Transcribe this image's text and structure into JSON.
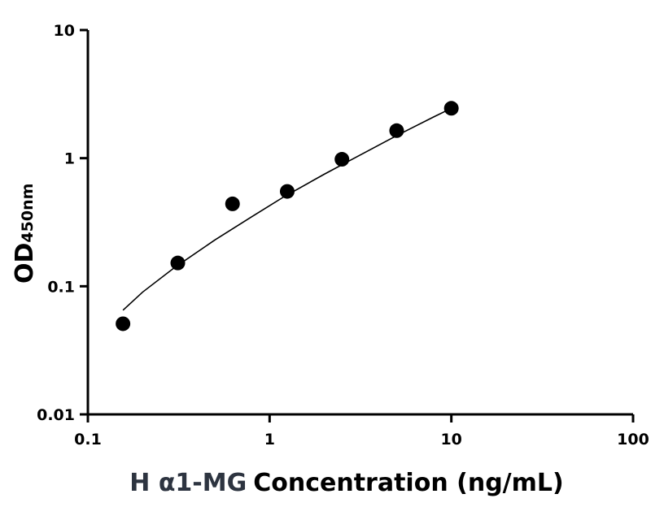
{
  "chart_data": {
    "type": "scatter",
    "xscale": "log",
    "yscale": "log",
    "xlim": [
      0.1,
      100
    ],
    "ylim": [
      0.01,
      10
    ],
    "x_ticks": [
      "0.1",
      "1",
      "10",
      "100"
    ],
    "y_ticks": [
      "0.01",
      "0.1",
      "1",
      "10"
    ],
    "xlabel_prefix": "H α1-MG",
    "xlabel": "Concentration (ng/mL)",
    "ylabel": "OD",
    "ylabel_subscript": "450nm",
    "grid": false,
    "series": [
      {
        "x": [
          0.156,
          0.3125,
          0.625,
          1.25,
          2.5,
          5,
          10
        ],
        "y": [
          0.051,
          0.152,
          0.44,
          0.55,
          0.98,
          1.64,
          2.45
        ]
      }
    ],
    "fit_curve": {
      "x": [
        0.156,
        0.2,
        0.3,
        0.5,
        0.8,
        1.2,
        2,
        3,
        5,
        8,
        10
      ],
      "y": [
        0.065,
        0.09,
        0.14,
        0.23,
        0.35,
        0.5,
        0.75,
        1.02,
        1.5,
        2.1,
        2.45
      ]
    },
    "colors": {
      "points": "#000000",
      "axes": "#000000",
      "xlabel_prefix": "#2d3440"
    }
  }
}
